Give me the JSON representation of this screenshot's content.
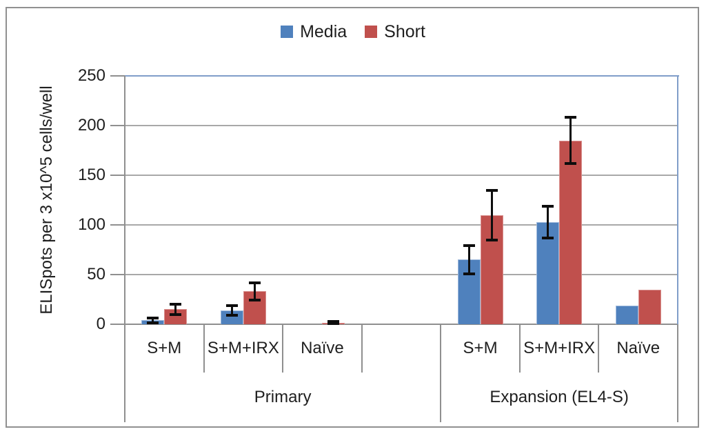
{
  "chart_data": {
    "type": "bar",
    "title": "",
    "xlabel": "",
    "ylabel": "ELISpots per 3 x10^5 cells/well",
    "ylim": [
      0,
      250
    ],
    "yticks": [
      0,
      50,
      100,
      150,
      200,
      250
    ],
    "grid": true,
    "legend_position": "top-center",
    "legend": [
      {
        "name": "Media",
        "color": "#4F81BD",
        "border_color": "#9EB9DC"
      },
      {
        "name": "Short",
        "color": "#C0504D",
        "border_color": "#D9908E"
      }
    ],
    "groups": [
      {
        "label": "Primary",
        "slot_count": 4,
        "categories": [
          "S+M",
          "S+M+IRX",
          "Naïve"
        ],
        "series": [
          {
            "name": "Media",
            "values": [
              4,
              14,
              0
            ],
            "errors": [
              2.5,
              5,
              null
            ]
          },
          {
            "name": "Short",
            "values": [
              15,
              33,
              1.5
            ],
            "errors": [
              5,
              9,
              1
            ]
          }
        ]
      },
      {
        "label": "Expansion (EL4-S)",
        "slot_count": 3,
        "categories": [
          "S+M",
          "S+M+IRX",
          "Naïve"
        ],
        "series": [
          {
            "name": "Media",
            "values": [
              65,
              103,
              19
            ],
            "errors": [
              14,
              16,
              null
            ]
          },
          {
            "name": "Short",
            "values": [
              110,
              185,
              35
            ],
            "errors": [
              25,
              23,
              null
            ]
          }
        ]
      }
    ],
    "colors": {
      "gridline": "#A8A8A8",
      "axis": "#8F8F8F",
      "plot_border": "#7F9DC9",
      "error_bar": "#0d0d0d",
      "frame_border": "#909090",
      "text": "#1f1f1f"
    }
  }
}
